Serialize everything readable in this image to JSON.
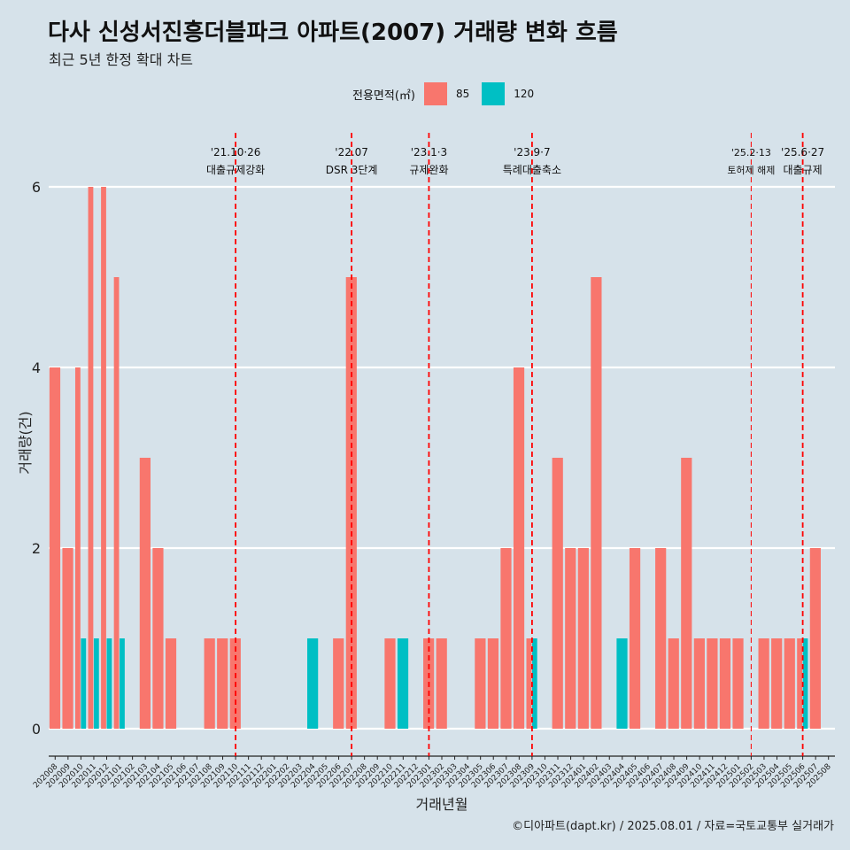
{
  "title": "다사 신성서진흥더블파크 아파트(2007) 거래량 변화 흐름",
  "subtitle": "최근 5년 한정 확대 차트",
  "caption": "©디아파트(dapt.kr) / 2025.08.01 / 자료=국토교통부 실거래가",
  "legend": {
    "title": "전용면적(㎡)",
    "items": [
      {
        "label": "85",
        "color": "#f8766d"
      },
      {
        "label": "120",
        "color": "#00bfc4"
      }
    ]
  },
  "chart_data": {
    "type": "bar",
    "xlabel": "거래년월",
    "ylabel": "거래량(건)",
    "ylim": [
      0,
      6
    ],
    "yticks": [
      0,
      2,
      4,
      6
    ],
    "grid": "horizontal",
    "legend_position": "top",
    "categories": [
      "202008",
      "202009",
      "202010",
      "202011",
      "202012",
      "202101",
      "202102",
      "202103",
      "202104",
      "202105",
      "202106",
      "202107",
      "202108",
      "202109",
      "202110",
      "202111",
      "202112",
      "202201",
      "202202",
      "202203",
      "202204",
      "202205",
      "202206",
      "202207",
      "202208",
      "202209",
      "202210",
      "202211",
      "202212",
      "202301",
      "202302",
      "202303",
      "202304",
      "202305",
      "202306",
      "202307",
      "202308",
      "202309",
      "202310",
      "202311",
      "202312",
      "202401",
      "202402",
      "202403",
      "202404",
      "202405",
      "202406",
      "202407",
      "202408",
      "202409",
      "202410",
      "202411",
      "202412",
      "202501",
      "202502",
      "202503",
      "202504",
      "202505",
      "202506",
      "202507",
      "202508"
    ],
    "series": [
      {
        "name": "85",
        "color": "#f8766d",
        "values": [
          4,
          2,
          4,
          6,
          6,
          5,
          0,
          3,
          2,
          1,
          0,
          0,
          1,
          1,
          1,
          0,
          0,
          0,
          0,
          0,
          0,
          0,
          1,
          5,
          0,
          0,
          1,
          0,
          0,
          1,
          1,
          0,
          0,
          1,
          1,
          2,
          4,
          1,
          0,
          3,
          2,
          2,
          5,
          0,
          0,
          2,
          0,
          2,
          1,
          3,
          1,
          1,
          1,
          1,
          0,
          1,
          1,
          1,
          1,
          2,
          0
        ]
      },
      {
        "name": "120",
        "color": "#00bfc4",
        "values": [
          0,
          0,
          1,
          1,
          1,
          1,
          0,
          0,
          0,
          0,
          0,
          0,
          0,
          0,
          0,
          0,
          0,
          0,
          0,
          0,
          1,
          0,
          0,
          0,
          0,
          0,
          0,
          1,
          0,
          0,
          0,
          0,
          0,
          0,
          0,
          0,
          0,
          1,
          0,
          0,
          0,
          0,
          0,
          0,
          1,
          0,
          0,
          0,
          0,
          0,
          0,
          0,
          0,
          0,
          0,
          0,
          0,
          0,
          1,
          0,
          0
        ]
      }
    ],
    "annotations": [
      {
        "x": "202110",
        "date": "'21.10·26",
        "text": "대출규제강화"
      },
      {
        "x": "202207",
        "date": "'22.07",
        "text": "DSR 3단계"
      },
      {
        "x": "202301",
        "date": "'23.1·3",
        "text": "규제완화"
      },
      {
        "x": "202309",
        "date": "'23.9·7",
        "text": "특례대출축소"
      },
      {
        "x": "202502",
        "date": "'25.2·13",
        "text": "토허제 해제"
      },
      {
        "x": "202506",
        "date": "'25.6·27",
        "text": "대출규제"
      }
    ]
  }
}
